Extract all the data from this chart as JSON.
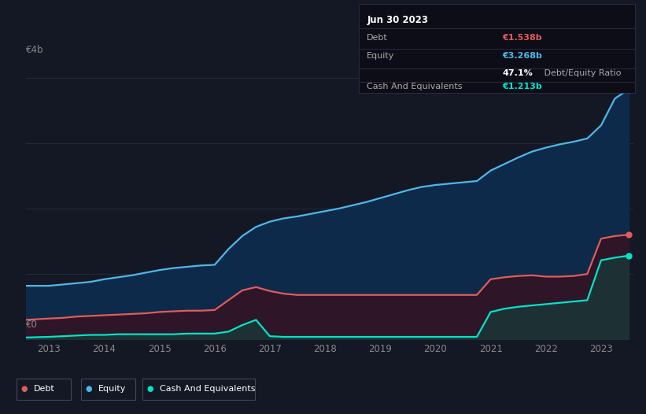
{
  "background_color": "#141824",
  "chart_bg": "#141824",
  "tooltip_box": {
    "date": "Jun 30 2023",
    "debt_label": "Debt",
    "debt_value": "€1.538b",
    "debt_color": "#e05c5c",
    "equity_label": "Equity",
    "equity_value": "€3.268b",
    "equity_color": "#4db8e8",
    "ratio_value": "47.1%",
    "ratio_label": " Debt/Equity Ratio",
    "cash_label": "Cash And Equivalents",
    "cash_value": "€1.213b",
    "cash_color": "#00e5c8"
  },
  "legend": [
    {
      "label": "Debt",
      "color": "#e05c5c"
    },
    {
      "label": "Equity",
      "color": "#4db8e8"
    },
    {
      "label": "Cash And Equivalents",
      "color": "#00e5c8"
    }
  ],
  "y_label_top": "€4b",
  "y_label_bottom": "€0",
  "x_ticks": [
    2013,
    2014,
    2015,
    2016,
    2017,
    2018,
    2019,
    2020,
    2021,
    2022,
    2023
  ],
  "ylim": [
    0,
    4.3
  ],
  "debt_line_color": "#e05c5c",
  "equity_line_color": "#4db8e8",
  "cash_line_color": "#00e5c8",
  "equity_fill_color": "#0d2a4a",
  "debt_fill_color": "#2e1528",
  "cash_fill_color": "#1a3535",
  "years": [
    2012.58,
    2013.0,
    2013.25,
    2013.5,
    2013.75,
    2014.0,
    2014.25,
    2014.5,
    2014.75,
    2015.0,
    2015.25,
    2015.5,
    2015.75,
    2016.0,
    2016.25,
    2016.5,
    2016.75,
    2017.0,
    2017.25,
    2017.5,
    2017.75,
    2018.0,
    2018.25,
    2018.5,
    2018.75,
    2019.0,
    2019.25,
    2019.5,
    2019.75,
    2020.0,
    2020.25,
    2020.5,
    2020.75,
    2021.0,
    2021.25,
    2021.5,
    2021.75,
    2022.0,
    2022.25,
    2022.5,
    2022.75,
    2023.0,
    2023.25,
    2023.5
  ],
  "equity": [
    0.82,
    0.82,
    0.84,
    0.86,
    0.88,
    0.92,
    0.95,
    0.98,
    1.02,
    1.06,
    1.09,
    1.11,
    1.13,
    1.14,
    1.38,
    1.58,
    1.72,
    1.8,
    1.85,
    1.88,
    1.92,
    1.96,
    2.0,
    2.05,
    2.1,
    2.16,
    2.22,
    2.28,
    2.33,
    2.36,
    2.38,
    2.4,
    2.42,
    2.58,
    2.68,
    2.78,
    2.87,
    2.93,
    2.98,
    3.02,
    3.07,
    3.27,
    3.68,
    3.82
  ],
  "debt": [
    0.3,
    0.32,
    0.33,
    0.35,
    0.36,
    0.37,
    0.38,
    0.39,
    0.4,
    0.42,
    0.43,
    0.44,
    0.44,
    0.45,
    0.6,
    0.75,
    0.8,
    0.74,
    0.7,
    0.68,
    0.68,
    0.68,
    0.68,
    0.68,
    0.68,
    0.68,
    0.68,
    0.68,
    0.68,
    0.68,
    0.68,
    0.68,
    0.68,
    0.92,
    0.95,
    0.97,
    0.98,
    0.96,
    0.96,
    0.97,
    1.0,
    1.54,
    1.58,
    1.6
  ],
  "cash": [
    0.03,
    0.04,
    0.05,
    0.06,
    0.07,
    0.07,
    0.08,
    0.08,
    0.08,
    0.08,
    0.08,
    0.09,
    0.09,
    0.09,
    0.12,
    0.22,
    0.3,
    0.05,
    0.04,
    0.04,
    0.04,
    0.04,
    0.04,
    0.04,
    0.04,
    0.04,
    0.04,
    0.04,
    0.04,
    0.04,
    0.04,
    0.04,
    0.04,
    0.42,
    0.47,
    0.5,
    0.52,
    0.54,
    0.56,
    0.58,
    0.6,
    1.21,
    1.25,
    1.28
  ]
}
